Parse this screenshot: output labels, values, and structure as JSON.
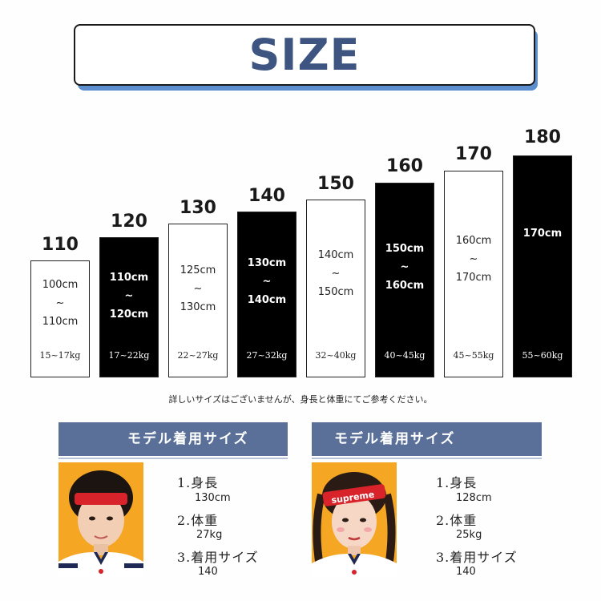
{
  "title": "SIZE",
  "sizes": [
    {
      "label": "110",
      "range_top": "100cm",
      "tilde": "~",
      "range_bottom": "110cm",
      "weight": "15~17kg",
      "dark": false
    },
    {
      "label": "120",
      "range_top": "110cm",
      "tilde": "~",
      "range_bottom": "120cm",
      "weight": "17~22kg",
      "dark": true
    },
    {
      "label": "130",
      "range_top": "125cm",
      "tilde": "~",
      "range_bottom": "130cm",
      "weight": "22~27kg",
      "dark": false
    },
    {
      "label": "140",
      "range_top": "130cm",
      "tilde": "~",
      "range_bottom": "140cm",
      "weight": "27~32kg",
      "dark": true
    },
    {
      "label": "150",
      "range_top": "140cm",
      "tilde": "~",
      "range_bottom": "150cm",
      "weight": "32~40kg",
      "dark": false
    },
    {
      "label": "160",
      "range_top": "150cm",
      "tilde": "~",
      "range_bottom": "160cm",
      "weight": "40~45kg",
      "dark": true
    },
    {
      "label": "170",
      "range_top": "160cm",
      "tilde": "~",
      "range_bottom": "170cm",
      "weight": "45~55kg",
      "dark": false
    },
    {
      "label": "180",
      "range_top": "170cm",
      "weight": "55~60kg",
      "dark": true
    }
  ],
  "note": "詳しいサイズはございませんが、身長と体重にてご参考ください。",
  "models": [
    {
      "heading": "モデル着用サイズ",
      "height_key": "1.身長",
      "height_val": "130cm",
      "weight_key": "2.体重",
      "weight_val": "27kg",
      "size_key": "3.着用サイズ",
      "size_val": "140"
    },
    {
      "heading": "モデル着用サイズ",
      "height_key": "1.身長",
      "height_val": "128cm",
      "weight_key": "2.体重",
      "weight_val": "25kg",
      "size_key": "3.着用サイズ",
      "size_val": "140",
      "headband_text": "supreme"
    }
  ],
  "colors": {
    "title": "#3d5580",
    "banner_shadow": "#5b8fd0",
    "card_header": "#5a7099",
    "photo_background": "#f5a623"
  }
}
